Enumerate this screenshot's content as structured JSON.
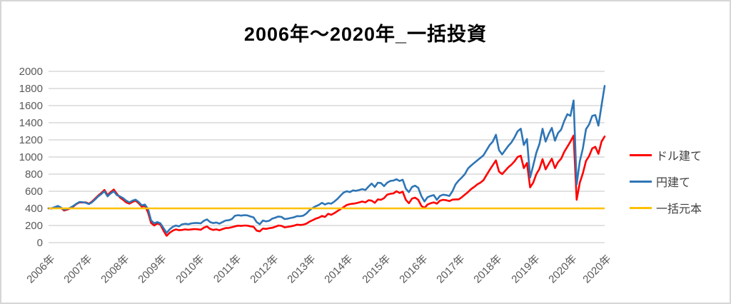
{
  "title": "2006年～2020年_一括投資",
  "legend": {
    "items": [
      {
        "label": "ドル建て",
        "color": "#FF0000"
      },
      {
        "label": "円建て",
        "color": "#2E75B6"
      },
      {
        "label": "一括元本",
        "color": "#FFC000"
      }
    ]
  },
  "colors": {
    "red_series": "#FF0000",
    "blue_series": "#2E75B6",
    "principal_line": "#FFC000",
    "gridline": "#D9D9D9",
    "axis_text": "#595959",
    "title_text": "#000000"
  },
  "chart_data": {
    "type": "line",
    "title": "2006年～2020年_一括投資",
    "x_unit": "month",
    "x_start": "2006-01",
    "x_end": "2020-12",
    "x_tick_labels": [
      "2006年",
      "2007年",
      "2008年",
      "2009年",
      "2010年",
      "2011年",
      "2012年",
      "2013年",
      "2014年",
      "2015年",
      "2016年",
      "2017年",
      "2018年",
      "2019年",
      "2020年",
      "2020年"
    ],
    "x_tick_month_indices": [
      0,
      12,
      24,
      36,
      48,
      60,
      72,
      84,
      96,
      108,
      120,
      132,
      144,
      156,
      168,
      179
    ],
    "y_ticks": [
      0,
      200,
      400,
      600,
      800,
      1000,
      1200,
      1400,
      1600,
      1800,
      2000
    ],
    "ylim": [
      0,
      2000
    ],
    "grid": "horizontal",
    "legend_position": "right",
    "series": [
      {
        "name": "ドル建て",
        "color": "#FF0000",
        "values": [
          400,
          398,
          412,
          424,
          405,
          375,
          385,
          402,
          422,
          452,
          470,
          468,
          470,
          455,
          480,
          515,
          550,
          580,
          615,
          555,
          590,
          620,
          570,
          527,
          500,
          470,
          455,
          475,
          490,
          460,
          420,
          430,
          354,
          230,
          200,
          225,
          210,
          140,
          80,
          115,
          140,
          155,
          145,
          148,
          155,
          150,
          155,
          158,
          156,
          150,
          175,
          189,
          160,
          148,
          155,
          145,
          158,
          170,
          172,
          180,
          190,
          198,
          195,
          200,
          198,
          190,
          185,
          140,
          132,
          165,
          160,
          168,
          173,
          185,
          200,
          196,
          178,
          184,
          190,
          198,
          210,
          206,
          210,
          222,
          245,
          262,
          280,
          292,
          312,
          300,
          337,
          325,
          345,
          368,
          392,
          415,
          440,
          450,
          455,
          460,
          470,
          480,
          470,
          495,
          490,
          465,
          505,
          500,
          520,
          560,
          570,
          575,
          600,
          580,
          595,
          500,
          460,
          515,
          525,
          500,
          430,
          405,
          445,
          460,
          470,
          455,
          490,
          500,
          495,
          485,
          502,
          505,
          505,
          530,
          560,
          590,
          625,
          650,
          680,
          700,
          730,
          790,
          850,
          905,
          960,
          830,
          800,
          840,
          880,
          910,
          950,
          1000,
          1015,
          870,
          930,
          645,
          700,
          800,
          860,
          975,
          856,
          920,
          980,
          870,
          940,
          980,
          1060,
          1120,
          1180,
          1250,
          500,
          700,
          810,
          955,
          1010,
          1100,
          1119,
          1037,
          1180,
          1240
        ]
      },
      {
        "name": "円建て",
        "color": "#2E75B6",
        "values": [
          400,
          402,
          415,
          428,
          410,
          385,
          392,
          408,
          428,
          455,
          475,
          472,
          465,
          450,
          472,
          505,
          540,
          568,
          600,
          540,
          575,
          600,
          555,
          540,
          520,
          490,
          470,
          490,
          502,
          475,
          435,
          445,
          395,
          260,
          225,
          240,
          225,
          170,
          115,
          155,
          185,
          200,
          190,
          214,
          220,
          215,
          225,
          228,
          230,
          225,
          255,
          272,
          240,
          228,
          235,
          222,
          240,
          258,
          262,
          275,
          313,
          321,
          315,
          321,
          318,
          305,
          295,
          239,
          215,
          258,
          248,
          255,
          280,
          292,
          305,
          300,
          275,
          280,
          288,
          296,
          310,
          308,
          315,
          340,
          378,
          405,
          425,
          440,
          465,
          445,
          461,
          455,
          480,
          510,
          550,
          585,
          600,
          590,
          610,
          605,
          615,
          625,
          615,
          655,
          690,
          650,
          700,
          695,
          660,
          700,
          720,
          725,
          740,
          720,
          735,
          630,
          590,
          650,
          665,
          640,
          545,
          480,
          530,
          545,
          555,
          500,
          545,
          560,
          555,
          545,
          600,
          680,
          725,
          760,
          800,
          865,
          900,
          930,
          960,
          990,
          1020,
          1080,
          1140,
          1180,
          1260,
          1080,
          1030,
          1080,
          1130,
          1170,
          1230,
          1300,
          1330,
          1140,
          1210,
          760,
          900,
          1050,
          1150,
          1330,
          1180,
          1270,
          1340,
          1190,
          1280,
          1320,
          1420,
          1500,
          1480,
          1660,
          680,
          950,
          1100,
          1325,
          1380,
          1480,
          1490,
          1366,
          1600,
          1830
        ]
      },
      {
        "name": "一括元本",
        "color": "#FFC000",
        "constant_value": 400
      }
    ]
  }
}
